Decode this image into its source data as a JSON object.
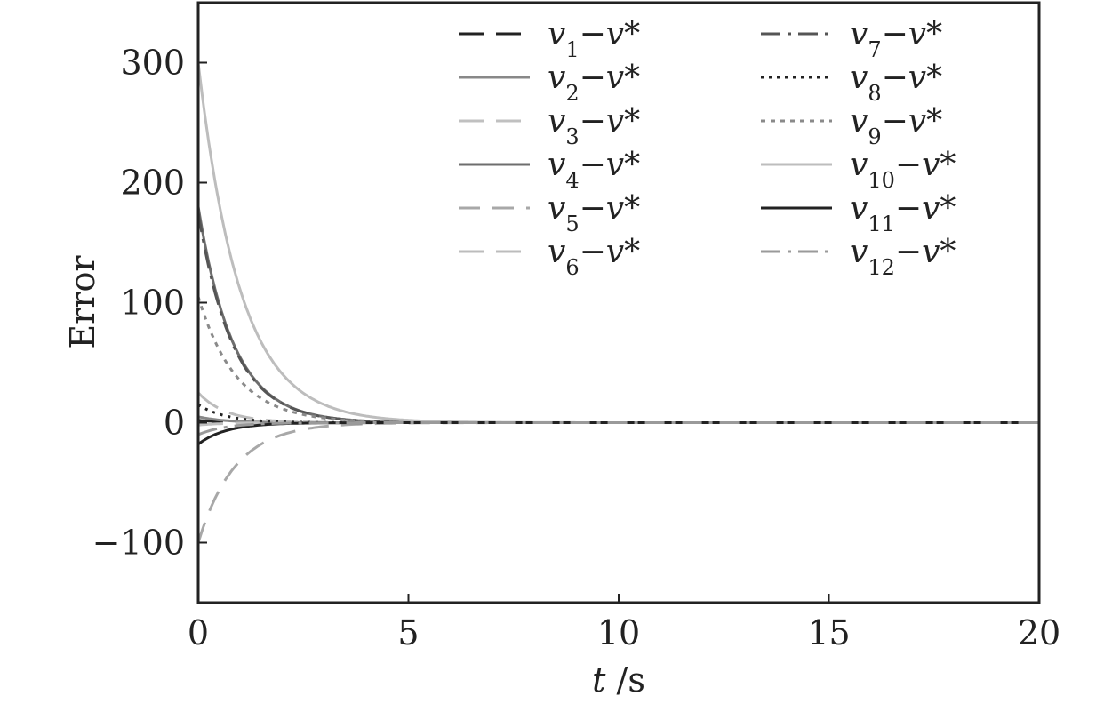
{
  "chart_data": {
    "type": "line",
    "xlabel": "t /s",
    "ylabel": "Error",
    "xlim": [
      0,
      20
    ],
    "ylim": [
      -150,
      350
    ],
    "xticks": [
      0,
      5,
      10,
      15,
      20
    ],
    "xtick_labels": [
      "0",
      "5",
      "10",
      "15",
      "20"
    ],
    "yticks": [
      -100,
      0,
      100,
      200,
      300
    ],
    "ytick_labels": [
      "−100",
      "0",
      "100",
      "200",
      "300"
    ],
    "grid": false,
    "legend_placement": "top",
    "legend_columns": 2,
    "series": [
      {
        "name": "v1−v*",
        "sub": "1",
        "initial": 2,
        "decay_rate": 1.6,
        "color": "#222222",
        "dash": "28,14"
      },
      {
        "name": "v2−v*",
        "sub": "2",
        "initial": 5,
        "decay_rate": 1.6,
        "color": "#888888",
        "dash": ""
      },
      {
        "name": "v3−v*",
        "sub": "3",
        "initial": -2,
        "decay_rate": 1.6,
        "color": "#c0c0c0",
        "dash": "28,14"
      },
      {
        "name": "v4−v*",
        "sub": "4",
        "initial": 180,
        "decay_rate": 1.2,
        "color": "#6e6e6e",
        "dash": ""
      },
      {
        "name": "v5−v*",
        "sub": "5",
        "initial": -100,
        "decay_rate": 1.15,
        "color": "#a8a8a8",
        "dash": "24,14"
      },
      {
        "name": "v6−v*",
        "sub": "6",
        "initial": 25,
        "decay_rate": 1.5,
        "color": "#bcbcbc",
        "dash": "28,14"
      },
      {
        "name": "v7−v*",
        "sub": "7",
        "initial": 175,
        "decay_rate": 1.2,
        "color": "#555555",
        "dash": "22,8,4,8"
      },
      {
        "name": "v8−v*",
        "sub": "8",
        "initial": 15,
        "decay_rate": 1.5,
        "color": "#222222",
        "dash": "3,6"
      },
      {
        "name": "v9−v*",
        "sub": "9",
        "initial": 105,
        "decay_rate": 1.1,
        "color": "#8a8a8a",
        "dash": "5,6"
      },
      {
        "name": "v10−v*",
        "sub": "10",
        "initial": 300,
        "decay_rate": 1.0,
        "color": "#bdbdbd",
        "dash": ""
      },
      {
        "name": "v11−v*",
        "sub": "11",
        "initial": -18,
        "decay_rate": 1.5,
        "color": "#222222",
        "dash": ""
      },
      {
        "name": "v12−v*",
        "sub": "12",
        "initial": -10,
        "decay_rate": 1.5,
        "color": "#9a9a9a",
        "dash": "22,8,4,8"
      }
    ]
  }
}
